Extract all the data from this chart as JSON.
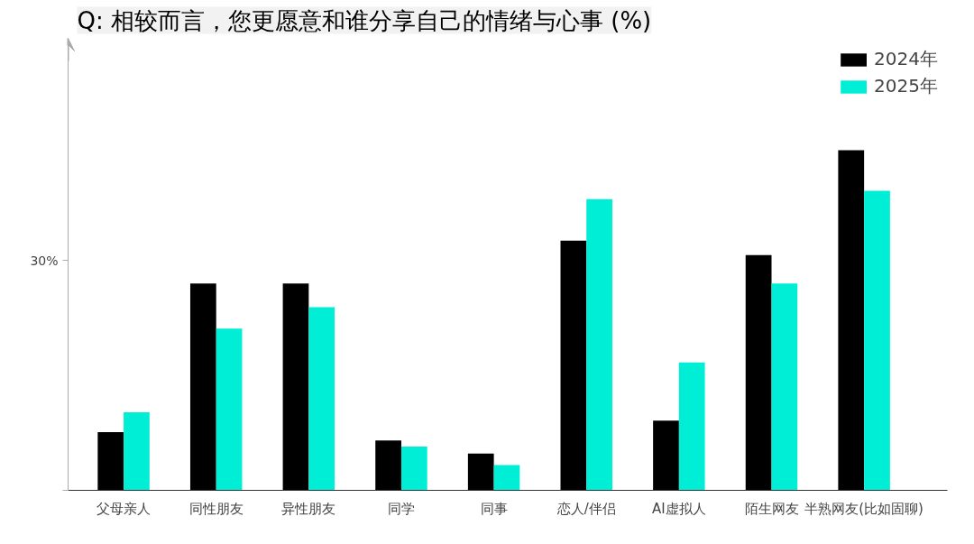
{
  "chart_data": {
    "type": "bar",
    "title": "Q: 相较而言，您更愿意和谁分享自己的情绪与心事 (%)",
    "categories": [
      "父母亲人",
      "同性朋友",
      "异性朋友",
      "同学",
      "同事",
      "恋人/伴侣",
      "AI虚拟人",
      "陌生网友",
      "半熟网友(比如固聊)"
    ],
    "series": [
      {
        "name": "2024年",
        "color": "#000000",
        "values": [
          7.6,
          27.0,
          27.0,
          6.5,
          4.8,
          32.6,
          9.1,
          30.7,
          44.4
        ]
      },
      {
        "name": "2025年",
        "color": "#00eed6",
        "values": [
          10.2,
          21.1,
          23.9,
          5.7,
          3.3,
          38.0,
          16.7,
          27.0,
          39.1
        ]
      }
    ],
    "ylim": [
      0,
      59
    ],
    "yticks": [
      {
        "value": 0,
        "label": null
      },
      {
        "value": 30,
        "label": "30%"
      }
    ],
    "grid": false,
    "legend": "top right"
  }
}
